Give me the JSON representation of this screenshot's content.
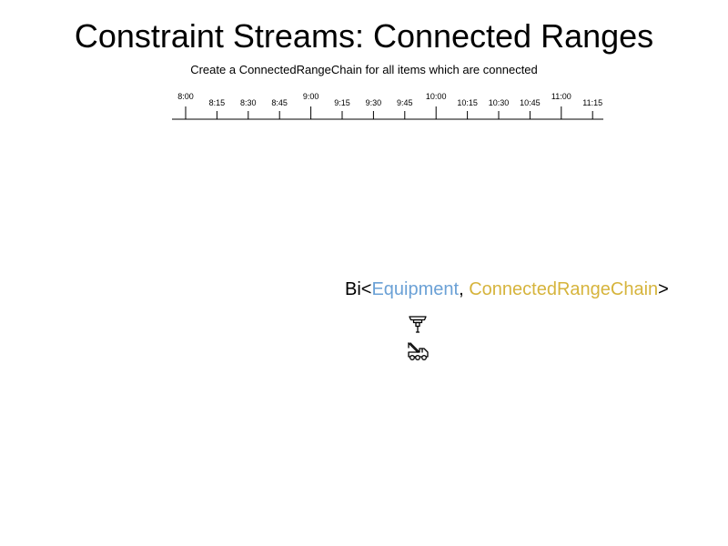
{
  "header": {
    "title": "Constraint Streams: Connected Ranges",
    "subtitle": "Create a ConnectedRangeChain for all items which are connected"
  },
  "timeline": {
    "major_ticks": [
      "8:00",
      "9:00",
      "10:00",
      "11:00"
    ],
    "minor_ticks": [
      "8:15",
      "8:30",
      "8:45",
      "9:15",
      "9:30",
      "9:45",
      "10:15",
      "10:30",
      "10:45",
      "11:15"
    ],
    "all_labels": [
      "8:00",
      "8:15",
      "8:30",
      "8:45",
      "9:00",
      "9:15",
      "9:30",
      "9:45",
      "10:00",
      "10:15",
      "10:30",
      "10:45",
      "11:00",
      "11:15"
    ]
  },
  "tuple": {
    "prefix": "Bi<",
    "type_a": "Equipment",
    "separator": ", ",
    "type_b": "ConnectedRangeChain",
    "suffix": ">",
    "color_a": "#6ba1d6",
    "color_b": "#d6b43c"
  },
  "items": [
    {
      "icon": "jackhammer-icon"
    },
    {
      "icon": "crane-truck-icon"
    }
  ]
}
